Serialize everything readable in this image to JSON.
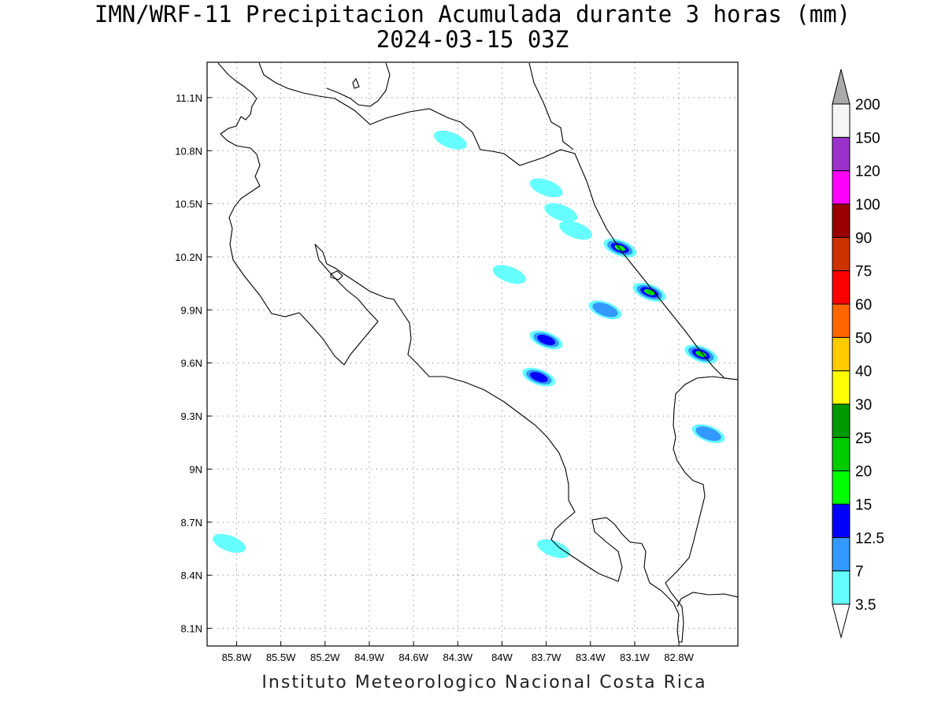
{
  "title": {
    "line1": "IMN/WRF-11 Precipitacion Acumulada durante 3 horas (mm)",
    "line2": "2024-03-15 03Z"
  },
  "footer": "Instituto Meteorologico Nacional Costa Rica",
  "map": {
    "lon_range": [
      -86.0,
      -82.4
    ],
    "lat_range": [
      8.0,
      11.3
    ],
    "lon_ticks": [
      {
        "value": -85.8,
        "label": "85.8W"
      },
      {
        "value": -85.5,
        "label": "85.5W"
      },
      {
        "value": -85.2,
        "label": "85.2W"
      },
      {
        "value": -84.9,
        "label": "84.9W"
      },
      {
        "value": -84.6,
        "label": "84.6W"
      },
      {
        "value": -84.3,
        "label": "84.3W"
      },
      {
        "value": -84.0,
        "label": "84W"
      },
      {
        "value": -83.7,
        "label": "83.7W"
      },
      {
        "value": -83.4,
        "label": "83.4W"
      },
      {
        "value": -83.1,
        "label": "83.1W"
      },
      {
        "value": -82.8,
        "label": "82.8W"
      }
    ],
    "lat_ticks": [
      {
        "value": 11.1,
        "label": "11.1N"
      },
      {
        "value": 10.8,
        "label": "10.8N"
      },
      {
        "value": 10.5,
        "label": "10.5N"
      },
      {
        "value": 10.2,
        "label": "10.2N"
      },
      {
        "value": 9.9,
        "label": "9.9N"
      },
      {
        "value": 9.6,
        "label": "9.6N"
      },
      {
        "value": 9.3,
        "label": "9.3N"
      },
      {
        "value": 9.0,
        "label": "9N"
      },
      {
        "value": 8.7,
        "label": "8.7N"
      },
      {
        "value": 8.4,
        "label": "8.4N"
      },
      {
        "value": 8.1,
        "label": "8.1N"
      }
    ],
    "grid": true
  },
  "colorbar": {
    "levels": [
      {
        "label": "3.5",
        "color": "#66ffff"
      },
      {
        "label": "7",
        "color": "#3399ff"
      },
      {
        "label": "12.5",
        "color": "#0000ff"
      },
      {
        "label": "15",
        "color": "#00ff00"
      },
      {
        "label": "20",
        "color": "#00cc00"
      },
      {
        "label": "25",
        "color": "#009900"
      },
      {
        "label": "30",
        "color": "#ffff00"
      },
      {
        "label": "40",
        "color": "#ffcc00"
      },
      {
        "label": "50",
        "color": "#ff6600"
      },
      {
        "label": "60",
        "color": "#ff0000"
      },
      {
        "label": "75",
        "color": "#cc3300"
      },
      {
        "label": "90",
        "color": "#990000"
      },
      {
        "label": "100",
        "color": "#ff00ff"
      },
      {
        "label": "120",
        "color": "#9933cc"
      },
      {
        "label": "150",
        "color": "#f5f5f5"
      },
      {
        "label": "200",
        "color": "#aaaaaa"
      }
    ]
  },
  "precip_areas": [
    {
      "lon": -83.7,
      "lat": 10.59,
      "level": 0
    },
    {
      "lon": -83.6,
      "lat": 10.45,
      "level": 0
    },
    {
      "lon": -83.5,
      "lat": 10.35,
      "level": 0
    },
    {
      "lon": -83.2,
      "lat": 10.25,
      "level": 3
    },
    {
      "lon": -83.0,
      "lat": 10.0,
      "level": 4
    },
    {
      "lon": -83.3,
      "lat": 9.9,
      "level": 1
    },
    {
      "lon": -83.7,
      "lat": 9.73,
      "level": 2
    },
    {
      "lon": -83.75,
      "lat": 9.52,
      "level": 2
    },
    {
      "lon": -82.65,
      "lat": 9.65,
      "level": 4
    },
    {
      "lon": -82.6,
      "lat": 9.2,
      "level": 1
    },
    {
      "lon": -83.65,
      "lat": 8.55,
      "level": 0
    },
    {
      "lon": -85.85,
      "lat": 8.58,
      "level": 0
    },
    {
      "lon": -84.35,
      "lat": 10.86,
      "level": 0
    },
    {
      "lon": -83.95,
      "lat": 10.1,
      "level": 0
    }
  ]
}
